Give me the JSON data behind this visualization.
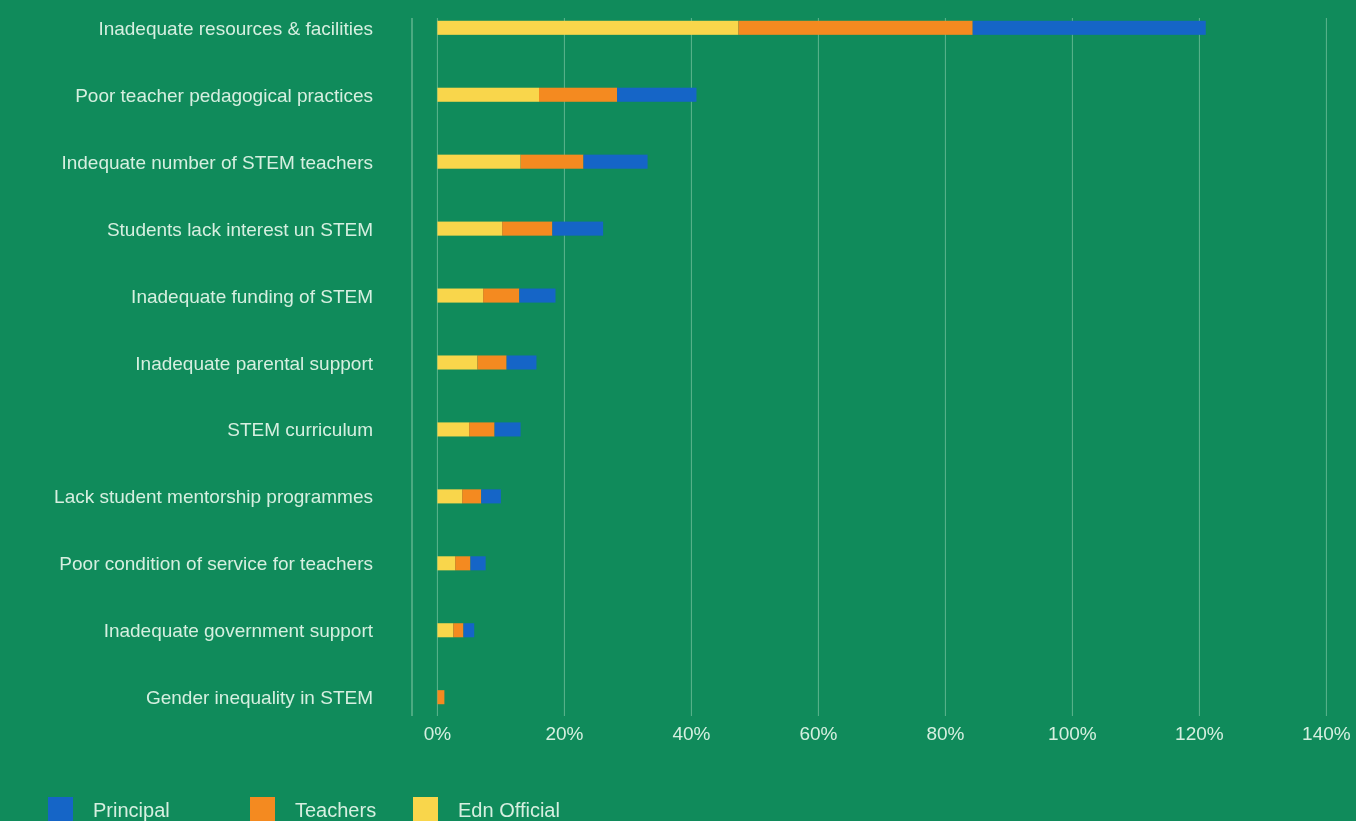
{
  "chart_data": {
    "type": "bar",
    "orientation": "horizontal",
    "stacked": true,
    "grid": "x",
    "legend": "bottom left",
    "categories": [
      "Inadequate resources & facilities",
      "Poor teacher pedagogical practices",
      "Indequate number of STEM teachers",
      "Students lack interest un STEM",
      "Inadequate funding of STEM",
      "Inadequate parental support",
      "STEM curriculum",
      "Lack student mentorship programmes",
      "Poor condition of service for teachers",
      "Inadequate government support",
      "Gender inequality in STEM"
    ],
    "series": [
      {
        "name": "Edn Official",
        "color": "#f9d64b",
        "values": [
          47.4,
          16.0,
          13.1,
          10.2,
          7.2,
          6.3,
          5.0,
          3.9,
          2.8,
          2.5,
          0
        ]
      },
      {
        "name": "Teachers",
        "color": "#f48a20",
        "values": [
          36.9,
          12.3,
          9.9,
          7.9,
          5.7,
          4.6,
          4.0,
          3.0,
          2.4,
          1.6,
          1.1
        ]
      },
      {
        "name": "Principal",
        "color": "#1565c7",
        "values": [
          36.7,
          12.5,
          10.1,
          8.0,
          5.7,
          4.7,
          4.1,
          3.1,
          2.4,
          1.7,
          0
        ]
      }
    ],
    "xlim": [
      -4,
      140
    ],
    "xticks": [
      {
        "value": 0,
        "label": "0%"
      },
      {
        "value": 20,
        "label": "20%"
      },
      {
        "value": 40,
        "label": "40%"
      },
      {
        "value": 60,
        "label": "60%"
      },
      {
        "value": 80,
        "label": "80%"
      },
      {
        "value": 100,
        "label": "100%"
      },
      {
        "value": 120,
        "label": "120%"
      },
      {
        "value": 140,
        "label": "140%"
      }
    ]
  }
}
